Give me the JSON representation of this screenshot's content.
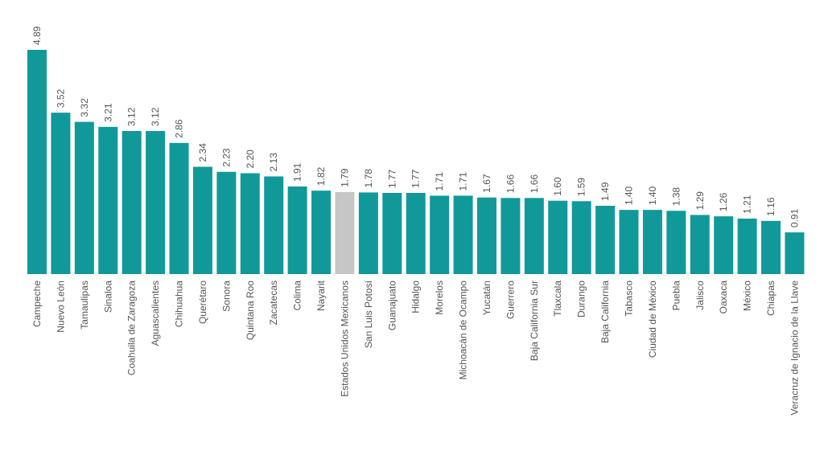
{
  "chart_data": {
    "type": "bar",
    "title": "",
    "xlabel": "",
    "ylabel": "",
    "ylim": [
      0,
      4.89
    ],
    "grid": false,
    "categories": [
      "Campeche",
      "Nuevo León",
      "Tamaulipas",
      "Sinaloa",
      "Coahuila de Zaragoza",
      "Aguascalientes",
      "Chihuahua",
      "Querétaro",
      "Sonora",
      "Quintana Roo",
      "Zacatecas",
      "Colima",
      "Nayarit",
      "Estados Unidos Mexicanos",
      "San Luis Potosí",
      "Guanajuato",
      "Hidalgo",
      "Morelos",
      "Michoacán de Ocampo",
      "Yucatán",
      "Guerrero",
      "Baja California Sur",
      "Tlaxcala",
      "Durango",
      "Baja California",
      "Tabasco",
      "Ciudad de México",
      "Puebla",
      "Jalisco",
      "Oaxaca",
      "México",
      "Chiapas",
      "Veracruz de Ignacio de la Llave"
    ],
    "values": [
      4.89,
      3.52,
      3.32,
      3.21,
      3.12,
      3.12,
      2.86,
      2.34,
      2.23,
      2.2,
      2.13,
      1.91,
      1.82,
      1.79,
      1.78,
      1.77,
      1.77,
      1.71,
      1.71,
      1.67,
      1.66,
      1.66,
      1.6,
      1.59,
      1.49,
      1.4,
      1.4,
      1.38,
      1.29,
      1.26,
      1.21,
      1.16,
      0.91
    ],
    "labels": [
      "4.89",
      "3.52",
      "3.32",
      "3.21",
      "3.12",
      "3.12",
      "2.86",
      "2.34",
      "2.23",
      "2.20",
      "2.13",
      "1.91",
      "1.82",
      "1.79",
      "1.78",
      "1.77",
      "1.77",
      "1.71",
      "1.71",
      "1.67",
      "1.66",
      "1.66",
      "1.60",
      "1.59",
      "1.49",
      "1.40",
      "1.40",
      "1.38",
      "1.29",
      "1.26",
      "1.21",
      "1.16",
      "0.91"
    ],
    "colors": {
      "default": "#11999a",
      "highlight": "#c6c6c6"
    },
    "highlight_category": "Estados Unidos Mexicanos"
  }
}
